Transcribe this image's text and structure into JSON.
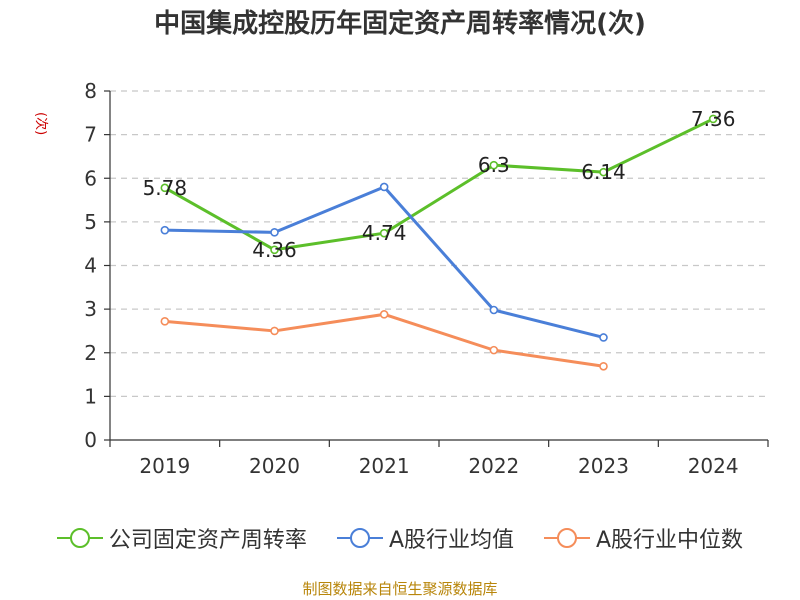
{
  "title": "中国集成控股历年固定资产周转率情况(次)",
  "source": "制图数据来自恒生聚源数据库",
  "chart_data": {
    "type": "line",
    "title": "中国集成控股历年固定资产周转率情况(次)",
    "ylabel": "(次)",
    "xlabel": "",
    "categories": [
      "2019",
      "2020",
      "2021",
      "2022",
      "2023",
      "2024"
    ],
    "ylim": [
      0,
      8
    ],
    "yticks": [
      0,
      1,
      2,
      3,
      4,
      5,
      6,
      7,
      8
    ],
    "grid": true,
    "legend_position": "bottom",
    "series": [
      {
        "name": "公司固定资产周转率",
        "color": "#5cbf2a",
        "values": [
          5.78,
          4.36,
          4.74,
          6.3,
          6.14,
          7.36
        ],
        "labels": [
          "5.78",
          "4.36",
          "4.74",
          "6.3",
          "6.14",
          "7.36"
        ]
      },
      {
        "name": "A股行业均值",
        "color": "#4a7fd8",
        "values": [
          4.81,
          4.76,
          5.8,
          2.98,
          2.35,
          null
        ]
      },
      {
        "name": "A股行业中位数",
        "color": "#f58d5a",
        "values": [
          2.72,
          2.5,
          2.88,
          2.06,
          1.69,
          null
        ]
      }
    ]
  }
}
